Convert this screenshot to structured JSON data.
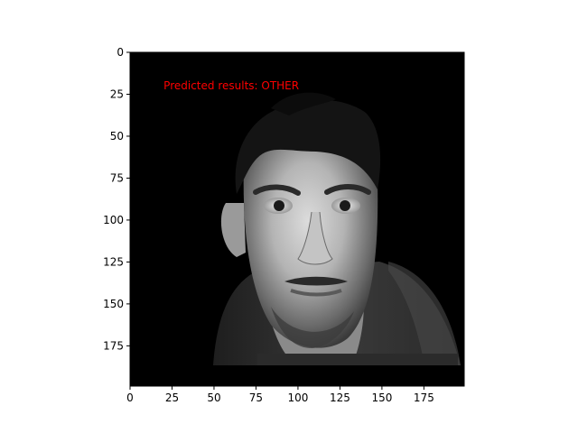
{
  "figure": {
    "background": "#ffffff",
    "image_description_kind": "grayscale-face-photo"
  },
  "axes": {
    "xlim": [
      0,
      199
    ],
    "ylim": [
      199,
      0
    ],
    "xticks": [
      0,
      25,
      50,
      75,
      100,
      125,
      150,
      175
    ],
    "yticks": [
      0,
      25,
      50,
      75,
      100,
      125,
      150,
      175
    ],
    "tick_color": "#000000"
  },
  "annotation": {
    "text": "Predicted results: OTHER",
    "color": "#ff0000",
    "x": 20,
    "y": 20
  }
}
